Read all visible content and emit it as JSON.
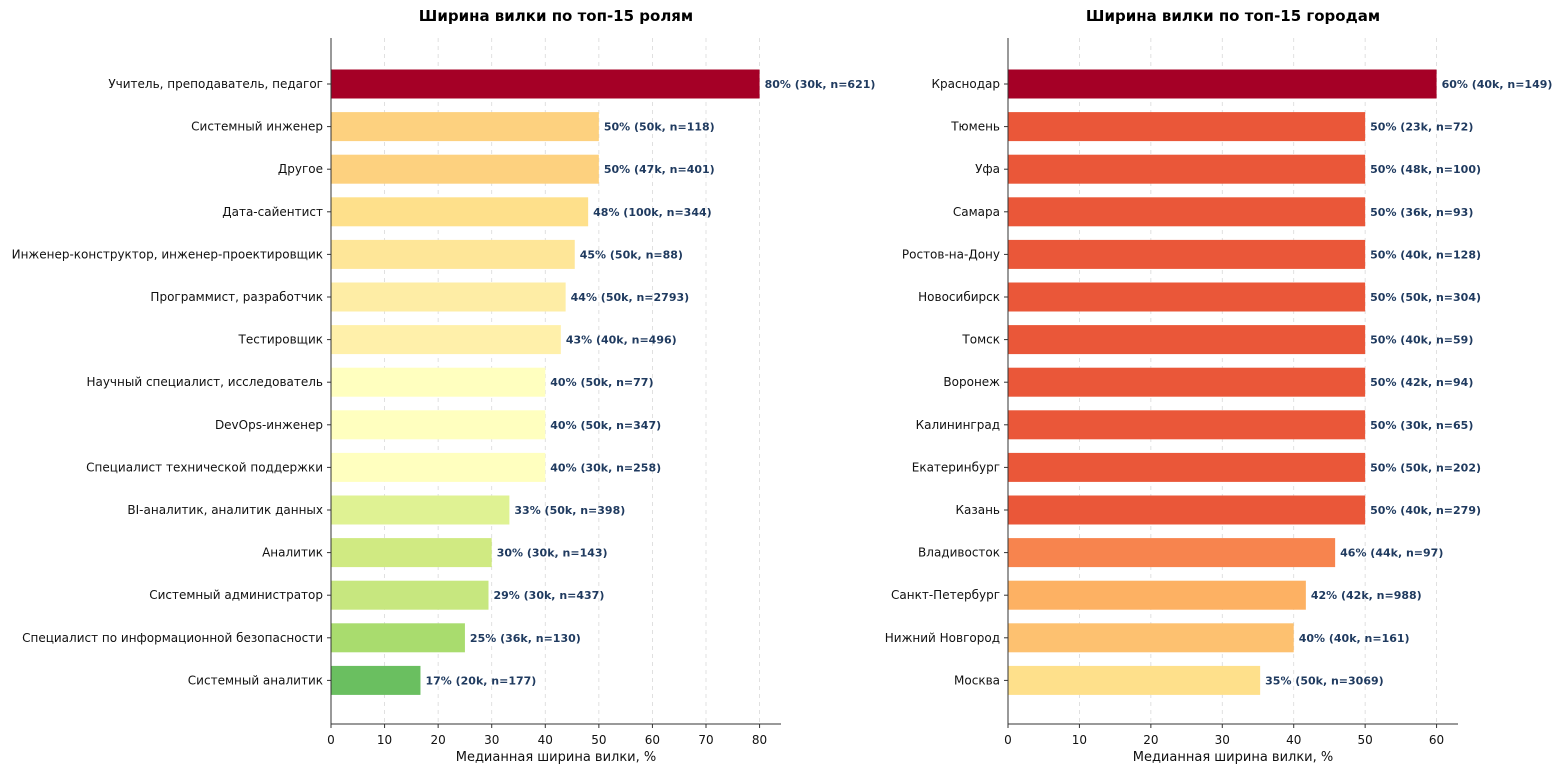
{
  "chart_data": [
    {
      "type": "bar",
      "orientation": "horizontal",
      "title": "Ширина вилки по топ-15 ролям",
      "xlabel": "Медианная ширина вилки, %",
      "xlim": [
        0,
        84
      ],
      "xticks": [
        0,
        10,
        20,
        30,
        40,
        50,
        60,
        70,
        80
      ],
      "grid": "x-dashed",
      "categories": [
        "Учитель, преподаватель, педагог",
        "Системный инженер",
        "Другое",
        "Дата-сайентист",
        "Инженер-конструктор, инженер-проектировщик",
        "Программист, разработчик",
        "Тестировщик",
        "Научный специалист, исследователь",
        "DevOps-инженер",
        "Специалист технической поддержки",
        "BI-аналитик, аналитик данных",
        "Аналитик",
        "Системный администратор",
        "Специалист по информационной безопасности",
        "Системный аналитик"
      ],
      "values": [
        80,
        50,
        50,
        48,
        45.5,
        43.8,
        42.9,
        40,
        40,
        40,
        33.3,
        30,
        29.4,
        25,
        16.7
      ],
      "data_labels": [
        "80% (30k, n=621)",
        "50% (50k, n=118)",
        "50% (47k, n=401)",
        "48% (100k, n=344)",
        "45% (50k, n=88)",
        "44% (50k, n=2793)",
        "43% (40k, n=496)",
        "40% (50k, n=77)",
        "40% (50k, n=347)",
        "40% (30k, n=258)",
        "33% (50k, n=398)",
        "30% (30k, n=143)",
        "29% (30k, n=437)",
        "25% (36k, n=130)",
        "17% (20k, n=177)"
      ],
      "colors": [
        "#a50026",
        "#fdd17f",
        "#fdd17f",
        "#fee08b",
        "#fee698",
        "#feeda5",
        "#fff0aa",
        "#ffffbf",
        "#ffffbf",
        "#ffffbf",
        "#dff293",
        "#d0ea82",
        "#c7e77f",
        "#a9dc6e",
        "#6abf60"
      ]
    },
    {
      "type": "bar",
      "orientation": "horizontal",
      "title": "Ширина вилки по топ-15 городам",
      "xlabel": "Медианная ширина вилки, %",
      "xlim": [
        0,
        63
      ],
      "xticks": [
        0,
        10,
        20,
        30,
        40,
        50,
        60
      ],
      "grid": "x-dashed",
      "categories": [
        "Краснодар",
        "Тюмень",
        "Уфа",
        "Самара",
        "Ростов-на-Дону",
        "Новосибирск",
        "Томск",
        "Воронеж",
        "Калининград",
        "Екатеринбург",
        "Казань",
        "Владивосток",
        "Санкт-Петербург",
        "Нижний Новгород",
        "Москва"
      ],
      "values": [
        60,
        50,
        50,
        50,
        50,
        50,
        50,
        50,
        50,
        50,
        50,
        45.8,
        41.7,
        40,
        35.3
      ],
      "data_labels": [
        "60% (40k, n=149)",
        "50% (23k, n=72)",
        "50% (48k, n=100)",
        "50% (36k, n=93)",
        "50% (40k, n=128)",
        "50% (50k, n=304)",
        "50% (40k, n=59)",
        "50% (42k, n=94)",
        "50% (30k, n=65)",
        "50% (50k, n=202)",
        "50% (40k, n=279)",
        "46% (44k, n=97)",
        "42% (42k, n=988)",
        "40% (40k, n=161)",
        "35% (50k, n=3069)"
      ],
      "colors": [
        "#a50026",
        "#ea5739",
        "#ea5739",
        "#ea5739",
        "#ea5739",
        "#ea5739",
        "#ea5739",
        "#ea5739",
        "#ea5739",
        "#ea5739",
        "#ea5739",
        "#f7844e",
        "#fdb163",
        "#fdc170",
        "#fee08b"
      ]
    }
  ]
}
